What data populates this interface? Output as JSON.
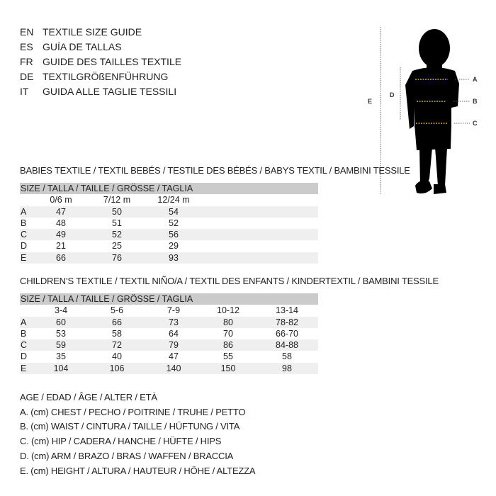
{
  "guide_titles": [
    {
      "code": "EN",
      "text": "TEXTILE SIZE GUIDE"
    },
    {
      "code": "ES",
      "text": "GUÍA DE TALLAS"
    },
    {
      "code": "FR",
      "text": "GUIDE DES TAILLES TEXTILE"
    },
    {
      "code": "DE",
      "text": "TEXTILGRÖßENFÜHRUNG"
    },
    {
      "code": "IT",
      "text": "GUIDA ALLE TAGLIE TESSILI"
    }
  ],
  "figure_labels": {
    "a": "A",
    "b": "B",
    "c": "C",
    "d": "D",
    "e": "E"
  },
  "babies": {
    "title": "BABIES TEXTILE / TEXTIL BEBÉS / TESTILE DES BÉBÉS / BABYS TEXTIL / BAMBINI TESSILE",
    "header": "SIZE / TALLA / TAILLE / GRÖSSE / TAGLIA",
    "columns": [
      "0/6 m",
      "7/12 m",
      "12/24 m"
    ],
    "rows": [
      {
        "label": "A",
        "values": [
          "47",
          "50",
          "54"
        ]
      },
      {
        "label": "B",
        "values": [
          "48",
          "51",
          "52"
        ]
      },
      {
        "label": "C",
        "values": [
          "49",
          "52",
          "56"
        ]
      },
      {
        "label": "D",
        "values": [
          "21",
          "25",
          "29"
        ]
      },
      {
        "label": "E",
        "values": [
          "66",
          "76",
          "93"
        ]
      }
    ]
  },
  "children": {
    "title": "CHILDREN’S TEXTILE / TEXTIL NIÑO/A / TEXTIL DES ENFANTS / KINDERTEXTIL / BAMBINI TESSILE",
    "header": "SIZE / TALLA / TAILLE / GRÖSSE / TAGLIA",
    "columns": [
      "3-4",
      "5-6",
      "7-9",
      "10-12",
      "13-14"
    ],
    "rows": [
      {
        "label": "A",
        "values": [
          "60",
          "66",
          "73",
          "80",
          "78-82"
        ]
      },
      {
        "label": "B",
        "values": [
          "53",
          "58",
          "64",
          "70",
          "66-70"
        ]
      },
      {
        "label": "C",
        "values": [
          "59",
          "72",
          "79",
          "86",
          "84-88"
        ]
      },
      {
        "label": "D",
        "values": [
          "35",
          "40",
          "47",
          "55",
          "58"
        ]
      },
      {
        "label": "E",
        "values": [
          "104",
          "106",
          "140",
          "150",
          "98"
        ]
      }
    ]
  },
  "legend": [
    "AGE / EDAD / ÂGE / ALTER / ETÀ",
    "A. (cm) CHEST / PECHO / POITRINE / TRUHE / PETTO",
    "B. (cm) WAIST / CINTURA / TAILLE / HÜFTUNG / VITA",
    "C. (cm) HIP / CADERA / HANCHE / HÜFTE / HIPS",
    "D. (cm) ARM / BRAZO / BRAS / WAFFEN / BRACCIA",
    "E. (cm) HEIGHT / ALTURA / HAUTEUR / HÖHE / ALTEZZA"
  ],
  "colors": {
    "header_bg": "#cbcbcb",
    "stripe_bg": "#efefef",
    "measure_line": "#f2d500"
  }
}
